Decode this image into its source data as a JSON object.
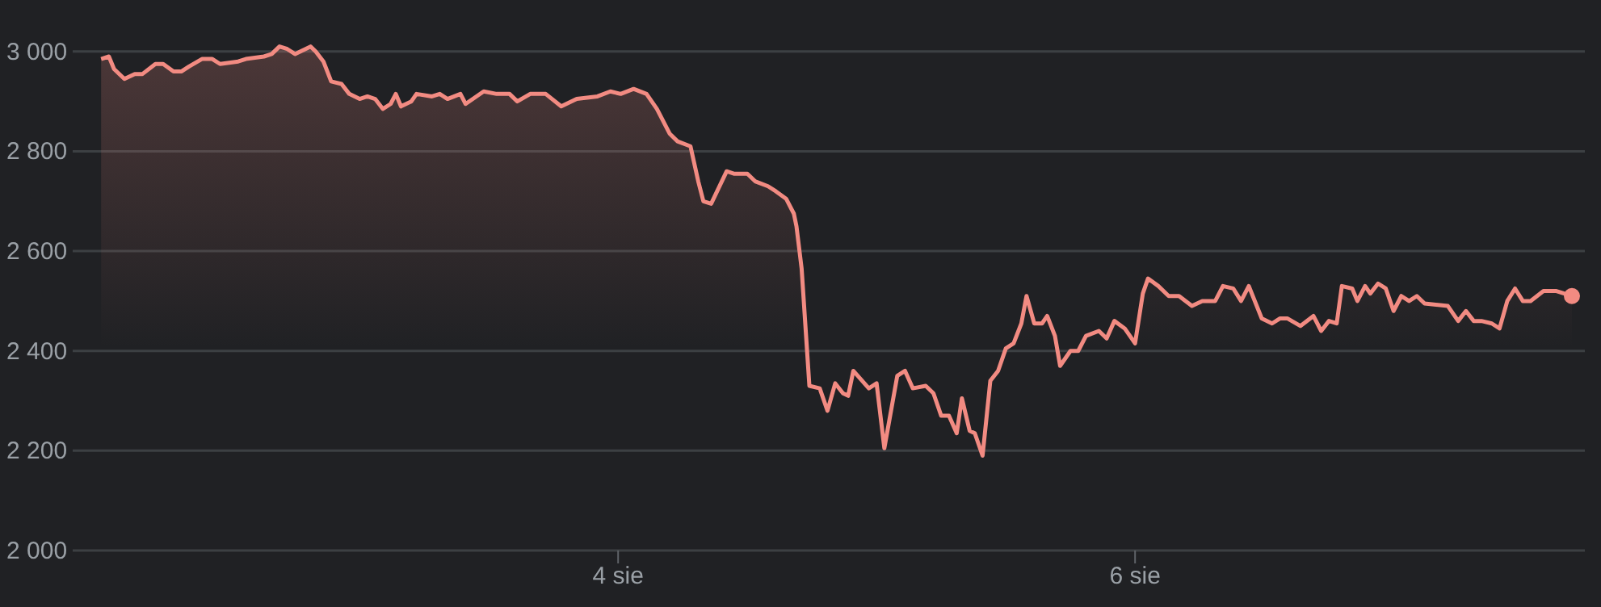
{
  "chart_data": {
    "type": "area",
    "x": [
      2.0,
      2.03,
      2.05,
      2.09,
      2.13,
      2.16,
      2.21,
      2.24,
      2.28,
      2.31,
      2.34,
      2.39,
      2.43,
      2.46,
      2.53,
      2.56,
      2.63,
      2.66,
      2.69,
      2.72,
      2.75,
      2.81,
      2.83,
      2.86,
      2.89,
      2.93,
      2.96,
      3.0,
      3.03,
      3.06,
      3.09,
      3.12,
      3.14,
      3.16,
      3.2,
      3.22,
      3.28,
      3.31,
      3.34,
      3.39,
      3.41,
      3.48,
      3.53,
      3.58,
      3.61,
      3.66,
      3.72,
      3.78,
      3.84,
      3.92,
      3.97,
      4.01,
      4.06,
      4.11,
      4.15,
      4.2,
      4.23,
      4.28,
      4.31,
      4.33,
      4.36,
      4.42,
      4.45,
      4.5,
      4.53,
      4.58,
      4.61,
      4.65,
      4.68,
      4.69,
      4.71,
      4.74,
      4.78,
      4.81,
      4.84,
      4.87,
      4.89,
      4.91,
      4.97,
      5.0,
      5.03,
      5.08,
      5.11,
      5.14,
      5.19,
      5.22,
      5.25,
      5.28,
      5.31,
      5.33,
      5.36,
      5.38,
      5.41,
      5.44,
      5.47,
      5.5,
      5.53,
      5.56,
      5.58,
      5.61,
      5.64,
      5.66,
      5.69,
      5.71,
      5.75,
      5.78,
      5.81,
      5.86,
      5.89,
      5.92,
      5.96,
      6.0,
      6.03,
      6.05,
      6.09,
      6.13,
      6.17,
      6.22,
      6.26,
      6.31,
      6.34,
      6.38,
      6.41,
      6.44,
      6.49,
      6.53,
      6.56,
      6.59,
      6.64,
      6.69,
      6.72,
      6.75,
      6.78,
      6.8,
      6.84,
      6.86,
      6.89,
      6.91,
      6.94,
      6.97,
      7.0,
      7.03,
      7.06,
      7.09,
      7.12,
      7.21,
      7.25,
      7.28,
      7.31,
      7.34,
      7.38,
      7.41,
      7.44,
      7.47,
      7.5,
      7.53,
      7.58,
      7.63,
      7.69
    ],
    "series": [
      {
        "color": "#f28b82",
        "values": [
          2985,
          2990,
          2965,
          2945,
          2955,
          2955,
          2975,
          2975,
          2960,
          2960,
          2970,
          2985,
          2985,
          2975,
          2980,
          2985,
          2990,
          2995,
          3010,
          3005,
          2995,
          3010,
          3000,
          2980,
          2940,
          2935,
          2915,
          2905,
          2910,
          2905,
          2885,
          2895,
          2915,
          2890,
          2900,
          2915,
          2910,
          2915,
          2905,
          2915,
          2895,
          2920,
          2915,
          2915,
          2900,
          2915,
          2915,
          2890,
          2905,
          2910,
          2920,
          2915,
          2925,
          2915,
          2885,
          2835,
          2820,
          2810,
          2740,
          2700,
          2695,
          2760,
          2755,
          2755,
          2740,
          2730,
          2720,
          2705,
          2675,
          2650,
          2565,
          2330,
          2325,
          2280,
          2335,
          2315,
          2310,
          2360,
          2325,
          2335,
          2205,
          2350,
          2360,
          2325,
          2330,
          2315,
          2270,
          2270,
          2235,
          2305,
          2240,
          2235,
          2190,
          2340,
          2360,
          2405,
          2415,
          2455,
          2510,
          2455,
          2455,
          2470,
          2430,
          2370,
          2400,
          2400,
          2430,
          2440,
          2425,
          2460,
          2445,
          2415,
          2515,
          2545,
          2530,
          2510,
          2510,
          2490,
          2500,
          2500,
          2530,
          2525,
          2500,
          2530,
          2465,
          2455,
          2465,
          2465,
          2450,
          2470,
          2440,
          2460,
          2455,
          2530,
          2525,
          2500,
          2530,
          2515,
          2535,
          2525,
          2480,
          2510,
          2500,
          2510,
          2495,
          2490,
          2460,
          2480,
          2460,
          2460,
          2455,
          2445,
          2500,
          2525,
          2500,
          2500,
          2520,
          2520,
          2510
        ]
      }
    ],
    "xlim": [
      1.89,
      7.74
    ],
    "xticks": [
      {
        "value": 4,
        "label": "4 sie"
      },
      {
        "value": 6,
        "label": "6 sie"
      }
    ],
    "ylim": [
      2000,
      3100
    ],
    "yticks": [
      {
        "value": 2000,
        "label": "2 000"
      },
      {
        "value": 2200,
        "label": "2 200"
      },
      {
        "value": 2400,
        "label": "2 400"
      },
      {
        "value": 2600,
        "label": "2 600"
      },
      {
        "value": 2800,
        "label": "2 800"
      },
      {
        "value": 3000,
        "label": "3 000"
      }
    ],
    "grid": "y"
  }
}
